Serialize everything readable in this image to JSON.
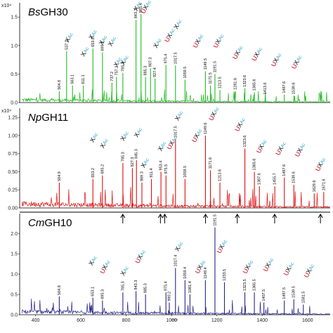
{
  "chart_data": [
    {
      "type": "line",
      "name": "BsGH30",
      "title_italic": "Bs",
      "title_rest": "GH30",
      "exponent_label": "x10⁴",
      "color": "#22bb22",
      "ylim": [
        0,
        1.65
      ],
      "yticks": [
        "0.0",
        "0.5",
        "1.0",
        "1.5"
      ],
      "xlim": [
        330,
        1700
      ],
      "baseline_amp": 0.05,
      "peaks": [
        {
          "x": 504.8,
          "y": 0.2,
          "label": "504.8"
        },
        {
          "x": 537.1,
          "y": 0.9,
          "label": "537.1"
        },
        {
          "x": 563.1,
          "y": 0.3,
          "label": "563.1"
        },
        {
          "x": 611.1,
          "y": 0.3,
          "label": "611.1"
        },
        {
          "x": 653.2,
          "y": 0.95,
          "label": "653.2"
        },
        {
          "x": 695.2,
          "y": 0.88,
          "label": "695.2"
        },
        {
          "x": 737.2,
          "y": 0.35,
          "label": "737.2"
        },
        {
          "x": 757.2,
          "y": 0.45,
          "label": "757.2"
        },
        {
          "x": 785.3,
          "y": 0.52,
          "label": "785.3"
        },
        {
          "x": 843.3,
          "y": 1.45,
          "label": "843.3"
        },
        {
          "x": 865.4,
          "y": 1.55,
          "label": "865.4"
        },
        {
          "x": 885.3,
          "y": 0.45,
          "label": "885.3"
        },
        {
          "x": 907.3,
          "y": 0.6,
          "label": "907.3"
        },
        {
          "x": 927.4,
          "y": 0.42,
          "label": "927.4"
        },
        {
          "x": 975.4,
          "y": 0.66,
          "label": "975.4"
        },
        {
          "x": 1017.5,
          "y": 0.65,
          "label": "1017.5"
        },
        {
          "x": 1059.5,
          "y": 0.4,
          "label": "1059.5"
        },
        {
          "x": 1149.5,
          "y": 0.55,
          "label": "1149.5"
        },
        {
          "x": 1171.5,
          "y": 0.3,
          "label": "1171.5"
        },
        {
          "x": 1191.5,
          "y": 0.5,
          "label": "1191.5"
        },
        {
          "x": 1213.5,
          "y": 0.22,
          "label": "1213.5"
        },
        {
          "x": 1281.6,
          "y": 0.2,
          "label": "1281.6"
        },
        {
          "x": 1323.6,
          "y": 0.25,
          "label": "1323.6"
        },
        {
          "x": 1365.6,
          "y": 0.18,
          "label": "1365.6"
        },
        {
          "x": 1413.6,
          "y": 0.12,
          "label": "1413.6"
        },
        {
          "x": 1497.6,
          "y": 0.14,
          "label": "1497.6"
        },
        {
          "x": 1539.6,
          "y": 0.12,
          "label": "1539.6"
        }
      ]
    },
    {
      "type": "line",
      "name": "NpGH11",
      "title_italic": "Np",
      "title_rest": "GH11",
      "exponent_label": "x10⁴",
      "color": "#e01010",
      "ylim": [
        0,
        1.3
      ],
      "yticks": [
        "0.00",
        "0.25",
        "0.50",
        "0.75",
        "1.00",
        "1.25"
      ],
      "xlim": [
        330,
        1700
      ],
      "baseline_amp": 0.06,
      "peaks": [
        {
          "x": 504.9,
          "y": 0.35,
          "label": "504.9"
        },
        {
          "x": 653.2,
          "y": 0.4,
          "label": "653.2"
        },
        {
          "x": 695.2,
          "y": 0.45,
          "label": "695.2"
        },
        {
          "x": 785.3,
          "y": 0.62,
          "label": "785.3"
        },
        {
          "x": 827.3,
          "y": 0.55,
          "label": "827.3"
        },
        {
          "x": 845.3,
          "y": 0.66,
          "label": "845.3"
        },
        {
          "x": 869.3,
          "y": 0.35,
          "label": "869.3"
        },
        {
          "x": 911.4,
          "y": 0.4,
          "label": "911.4"
        },
        {
          "x": 953.4,
          "y": 0.5,
          "label": "953.4"
        },
        {
          "x": 975.5,
          "y": 0.45,
          "label": "975.5"
        },
        {
          "x": 1017.5,
          "y": 0.95,
          "label": "1017.5"
        },
        {
          "x": 1059.5,
          "y": 0.4,
          "label": "1059.5"
        },
        {
          "x": 1149.6,
          "y": 1.0,
          "label": "1149.6"
        },
        {
          "x": 1171.6,
          "y": 0.52,
          "label": "1171.6"
        },
        {
          "x": 1213.6,
          "y": 0.35,
          "label": "1213.6"
        },
        {
          "x": 1323.6,
          "y": 0.82,
          "label": "1323.6"
        },
        {
          "x": 1365.6,
          "y": 0.5,
          "label": "1365.6"
        },
        {
          "x": 1387.6,
          "y": 0.3,
          "label": "1387.6"
        },
        {
          "x": 1455.7,
          "y": 0.3,
          "label": "1455.7"
        },
        {
          "x": 1497.6,
          "y": 0.42,
          "label": "1497.6"
        },
        {
          "x": 1539.6,
          "y": 0.32,
          "label": "1539.6"
        },
        {
          "x": 1629.6,
          "y": 0.2,
          "label": "1629.6"
        },
        {
          "x": 1671.6,
          "y": 0.22,
          "label": "1671.6"
        }
      ]
    },
    {
      "type": "line",
      "name": "CmGH10",
      "title_italic": "Cm",
      "title_rest": "GH10",
      "exponent_label": "",
      "color": "#26248a",
      "ylim": [
        0,
        2.35
      ],
      "yticks": [
        "0.0",
        "0.5",
        "1.0",
        "1.5",
        "2.0"
      ],
      "xlim": [
        330,
        1700
      ],
      "xticks": [
        400,
        600,
        800,
        1000,
        1200,
        1400,
        1600
      ],
      "xlabel": "m/z",
      "baseline_amp": 0.08,
      "peaks": [
        {
          "x": 504.8,
          "y": 0.45,
          "label": "504.8"
        },
        {
          "x": 653.1,
          "y": 0.42,
          "label": "653.1"
        },
        {
          "x": 695.3,
          "y": 0.35,
          "label": "695.3"
        },
        {
          "x": 785.3,
          "y": 0.55,
          "label": "785.3"
        },
        {
          "x": 843.3,
          "y": 0.58,
          "label": "843.3"
        },
        {
          "x": 885.3,
          "y": 0.5,
          "label": "885.3"
        },
        {
          "x": 975.4,
          "y": 0.55,
          "label": "975.4"
        },
        {
          "x": 990.2,
          "y": 0.3,
          "label": "990.2"
        },
        {
          "x": 1017.4,
          "y": 1.15,
          "label": "1017.4"
        },
        {
          "x": 1059.4,
          "y": 0.85,
          "label": "1059.4"
        },
        {
          "x": 1081.4,
          "y": 0.5,
          "label": "1081.4"
        },
        {
          "x": 1149.4,
          "y": 0.85,
          "label": "1149.4"
        },
        {
          "x": 1191.5,
          "y": 2.15,
          "label": "1191.5"
        },
        {
          "x": 1233.5,
          "y": 0.8,
          "label": "1233.5"
        },
        {
          "x": 1323.5,
          "y": 0.55,
          "label": "1323.5"
        },
        {
          "x": 1365.5,
          "y": 0.55,
          "label": "1365.5"
        },
        {
          "x": 1407.5,
          "y": 0.3,
          "label": "1407.5"
        },
        {
          "x": 1497.5,
          "y": 0.35,
          "label": "1497.5"
        },
        {
          "x": 1539.5,
          "y": 0.38,
          "label": "1539.5"
        },
        {
          "x": 1581.5,
          "y": 0.25,
          "label": "1581.5"
        }
      ]
    }
  ],
  "arrows_x": [
    785,
    951,
    970,
    1150,
    1290,
    1455,
    1657
  ],
  "annotations": [
    {
      "panel": 0,
      "x": 545,
      "y": 1.05,
      "parts": [
        [
          "X",
          "x"
        ],
        [
          "Ac",
          "ac"
        ]
      ]
    },
    {
      "panel": 0,
      "x": 615,
      "y": 0.8,
      "parts": [
        [
          "X",
          "x"
        ],
        [
          "Ac",
          "ac"
        ]
      ]
    },
    {
      "panel": 0,
      "x": 650,
      "y": 1.1,
      "parts": [
        [
          "X",
          "x"
        ],
        [
          "Ac",
          "ac"
        ]
      ]
    },
    {
      "panel": 0,
      "x": 695,
      "y": 1.0,
      "parts": [
        [
          "X",
          "x"
        ],
        [
          "Ac",
          "ac"
        ]
      ]
    },
    {
      "panel": 0,
      "x": 735,
      "y": 0.98,
      "parts": [
        [
          "X",
          "x"
        ],
        [
          "Ac",
          "ac"
        ]
      ]
    },
    {
      "panel": 0,
      "x": 760,
      "y": 0.62,
      "parts": [
        [
          "X",
          "x"
        ],
        [
          "Ac",
          "ac"
        ]
      ]
    },
    {
      "panel": 0,
      "x": 790,
      "y": 0.65,
      "parts": [
        [
          "X",
          "x"
        ],
        [
          "Ac",
          "ac"
        ]
      ]
    },
    {
      "panel": 0,
      "x": 848,
      "y": 1.6,
      "parts": [
        [
          "X",
          "x"
        ],
        [
          "Ac",
          "ac"
        ]
      ]
    },
    {
      "panel": 0,
      "x": 880,
      "y": 1.55,
      "parts": [
        [
          "U",
          "u"
        ],
        [
          "X",
          "x"
        ],
        [
          "Ac",
          "ac"
        ]
      ]
    },
    {
      "panel": 0,
      "x": 935,
      "y": 0.95,
      "parts": [
        [
          "X",
          "x"
        ],
        [
          "Ac",
          "ac"
        ]
      ]
    },
    {
      "panel": 0,
      "x": 985,
      "y": 1.05,
      "parts": [
        [
          "U",
          "u"
        ],
        [
          "X",
          "x"
        ],
        [
          "Ac",
          "ac"
        ]
      ]
    },
    {
      "panel": 0,
      "x": 1025,
      "y": 1.28,
      "parts": [
        [
          "X",
          "x"
        ],
        [
          "Ac",
          "ac"
        ]
      ]
    },
    {
      "panel": 0,
      "x": 1110,
      "y": 0.95,
      "parts": [
        [
          "U",
          "u"
        ],
        [
          "X",
          "x"
        ],
        [
          "Ac",
          "ac"
        ]
      ]
    },
    {
      "panel": 0,
      "x": 1200,
      "y": 0.95,
      "parts": [
        [
          "U",
          "u"
        ],
        [
          "X",
          "x"
        ],
        [
          "Ac",
          "ac"
        ]
      ]
    },
    {
      "panel": 0,
      "x": 1285,
      "y": 0.75,
      "parts": [
        [
          "U",
          "u"
        ],
        [
          "X",
          "x"
        ],
        [
          "Ac",
          "ac"
        ]
      ]
    },
    {
      "panel": 0,
      "x": 1370,
      "y": 0.72,
      "parts": [
        [
          "U",
          "u"
        ],
        [
          "X",
          "x"
        ],
        [
          "Ac",
          "ac"
        ]
      ]
    },
    {
      "panel": 0,
      "x": 1455,
      "y": 0.62,
      "parts": [
        [
          "U",
          "u"
        ],
        [
          "X",
          "x"
        ],
        [
          "Ac",
          "ac"
        ]
      ]
    },
    {
      "panel": 0,
      "x": 1545,
      "y": 0.58,
      "parts": [
        [
          "U",
          "u"
        ],
        [
          "X",
          "x"
        ],
        [
          "Ac",
          "ac"
        ]
      ]
    },
    {
      "panel": 1,
      "x": 655,
      "y": 0.9,
      "parts": [
        [
          "X",
          "x"
        ],
        [
          "Ac",
          "ac"
        ]
      ]
    },
    {
      "panel": 1,
      "x": 700,
      "y": 0.82,
      "parts": [
        [
          "X",
          "x"
        ],
        [
          "Ac",
          "ac"
        ]
      ]
    },
    {
      "panel": 1,
      "x": 790,
      "y": 0.92,
      "parts": [
        [
          "X",
          "x"
        ],
        [
          "Ac",
          "ac"
        ]
      ]
    },
    {
      "panel": 1,
      "x": 850,
      "y": 0.97,
      "parts": [
        [
          "X",
          "x"
        ],
        [
          "Ac",
          "ac"
        ]
      ]
    },
    {
      "panel": 1,
      "x": 880,
      "y": 0.55,
      "parts": [
        [
          "X",
          "x"
        ],
        [
          "Ac",
          "ac"
        ]
      ]
    },
    {
      "panel": 1,
      "x": 955,
      "y": 0.78,
      "parts": [
        [
          "X",
          "x"
        ],
        [
          "Ac",
          "ac"
        ]
      ]
    },
    {
      "panel": 1,
      "x": 995,
      "y": 0.8,
      "parts": [
        [
          "U",
          "u"
        ],
        [
          "X",
          "x"
        ],
        [
          "Ac",
          "ac"
        ]
      ]
    },
    {
      "panel": 1,
      "x": 1030,
      "y": 1.2,
      "parts": [
        [
          "X",
          "x"
        ],
        [
          "Ac",
          "ac"
        ]
      ]
    },
    {
      "panel": 1,
      "x": 1105,
      "y": 0.9,
      "parts": [
        [
          "U",
          "u"
        ],
        [
          "X",
          "x"
        ],
        [
          "Ac",
          "ac"
        ]
      ]
    },
    {
      "panel": 1,
      "x": 1180,
      "y": 1.2,
      "parts": [
        [
          "U",
          "u"
        ],
        [
          "X",
          "x"
        ],
        [
          "Ac",
          "ac"
        ]
      ]
    },
    {
      "panel": 1,
      "x": 1295,
      "y": 1.05,
      "parts": [
        [
          "U",
          "u"
        ],
        [
          "X",
          "x"
        ],
        [
          "Ac",
          "ac"
        ]
      ]
    },
    {
      "panel": 1,
      "x": 1390,
      "y": 0.75,
      "parts": [
        [
          "U",
          "u"
        ],
        [
          "X",
          "x"
        ],
        [
          "Ac",
          "ac"
        ]
      ]
    },
    {
      "panel": 1,
      "x": 1475,
      "y": 0.72,
      "parts": [
        [
          "U",
          "u"
        ],
        [
          "X",
          "x"
        ],
        [
          "Ac",
          "ac"
        ]
      ]
    },
    {
      "panel": 1,
      "x": 1560,
      "y": 0.7,
      "parts": [
        [
          "U",
          "u"
        ],
        [
          "X",
          "x"
        ],
        [
          "Ac",
          "ac"
        ]
      ]
    },
    {
      "panel": 1,
      "x": 1650,
      "y": 0.5,
      "parts": [
        [
          "U",
          "u"
        ],
        [
          "X",
          "x"
        ],
        [
          "Ac",
          "ac"
        ]
      ]
    },
    {
      "panel": 2,
      "x": 650,
      "y": 1.2,
      "parts": [
        [
          "X",
          "x"
        ],
        [
          "Ac",
          "ac"
        ]
      ]
    },
    {
      "panel": 2,
      "x": 700,
      "y": 1.0,
      "parts": [
        [
          "U",
          "u"
        ],
        [
          "X",
          "x"
        ],
        [
          "Ac",
          "ac"
        ]
      ]
    },
    {
      "panel": 2,
      "x": 790,
      "y": 0.95,
      "parts": [
        [
          "X",
          "x"
        ],
        [
          "Ac",
          "ac"
        ]
      ]
    },
    {
      "panel": 2,
      "x": 855,
      "y": 1.25,
      "parts": [
        [
          "U",
          "u"
        ],
        [
          "X",
          "x"
        ],
        [
          "Ac",
          "ac"
        ]
      ]
    },
    {
      "panel": 2,
      "x": 1030,
      "y": 1.55,
      "parts": [
        [
          "X",
          "x"
        ],
        [
          "Ac",
          "ac"
        ]
      ]
    },
    {
      "panel": 2,
      "x": 1120,
      "y": 1.0,
      "parts": [
        [
          "U",
          "u"
        ],
        [
          "X",
          "x"
        ],
        [
          "Ac",
          "ac"
        ]
      ]
    },
    {
      "panel": 2,
      "x": 1215,
      "y": 1.5,
      "parts": [
        [
          "U",
          "u"
        ],
        [
          "X",
          "x"
        ],
        [
          "Ac",
          "ac"
        ]
      ]
    },
    {
      "panel": 2,
      "x": 1330,
      "y": 1.0,
      "parts": [
        [
          "U",
          "u"
        ],
        [
          "X",
          "x"
        ],
        [
          "Ac",
          "ac"
        ]
      ]
    },
    {
      "panel": 2,
      "x": 1420,
      "y": 1.05,
      "parts": [
        [
          "U",
          "u"
        ],
        [
          "X",
          "x"
        ],
        [
          "Ac",
          "ac"
        ]
      ]
    },
    {
      "panel": 2,
      "x": 1510,
      "y": 0.95,
      "parts": [
        [
          "U",
          "u"
        ],
        [
          "X",
          "x"
        ],
        [
          "Ac",
          "ac"
        ]
      ]
    },
    {
      "panel": 2,
      "x": 1600,
      "y": 0.9,
      "parts": [
        [
          "U",
          "u"
        ],
        [
          "X",
          "x"
        ],
        [
          "Ac",
          "ac"
        ]
      ]
    }
  ]
}
